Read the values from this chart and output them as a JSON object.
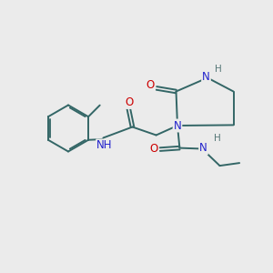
{
  "bg": "#ebebeb",
  "bc": "#336666",
  "bw": 1.4,
  "dbo": 0.06,
  "O_color": "#cc0000",
  "N_color": "#2222cc",
  "H_color": "#557777",
  "C_color": "#336666",
  "fs": 8.5,
  "fsH": 7.5,
  "xlim": [
    0,
    10
  ],
  "ylim": [
    0,
    10
  ]
}
